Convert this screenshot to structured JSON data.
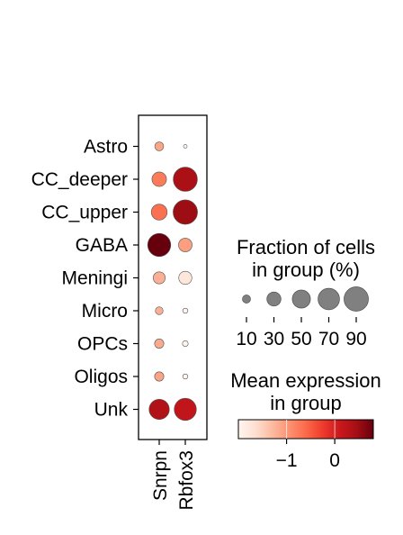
{
  "chart_data": {
    "type": "scatter",
    "subtype": "dotplot",
    "groups": [
      "Astro",
      "CC_deeper",
      "CC_upper",
      "GABA",
      "Meningi",
      "Micro",
      "OPCs",
      "Oligos",
      "Unk"
    ],
    "genes": [
      "Snrpn",
      "Rbfox3"
    ],
    "fraction_pct": [
      [
        12,
        2
      ],
      [
        32,
        88
      ],
      [
        38,
        90
      ],
      [
        80,
        28
      ],
      [
        22,
        26
      ],
      [
        9,
        4
      ],
      [
        13,
        5
      ],
      [
        13,
        4
      ],
      [
        62,
        74
      ]
    ],
    "mean_expression": [
      [
        -1.1,
        -2.0
      ],
      [
        -0.75,
        0.4
      ],
      [
        -0.65,
        0.5
      ],
      [
        0.85,
        -1.05
      ],
      [
        -1.2,
        -1.75
      ],
      [
        -1.2,
        -2.0
      ],
      [
        -1.15,
        -2.0
      ],
      [
        -1.1,
        -2.0
      ],
      [
        0.35,
        0.2
      ]
    ],
    "size_legend": {
      "title_lines": [
        "Fraction of cells",
        "in group (%)"
      ],
      "ticks": [
        10,
        30,
        50,
        70,
        90
      ]
    },
    "color_legend": {
      "title_lines": [
        "Mean expression",
        "in group"
      ],
      "vmin": -2.0,
      "vmax": 0.8,
      "ticks": [
        -1,
        0
      ],
      "tick_labels": [
        "−1",
        "0"
      ],
      "colormap": "Reds"
    },
    "grid": false
  }
}
